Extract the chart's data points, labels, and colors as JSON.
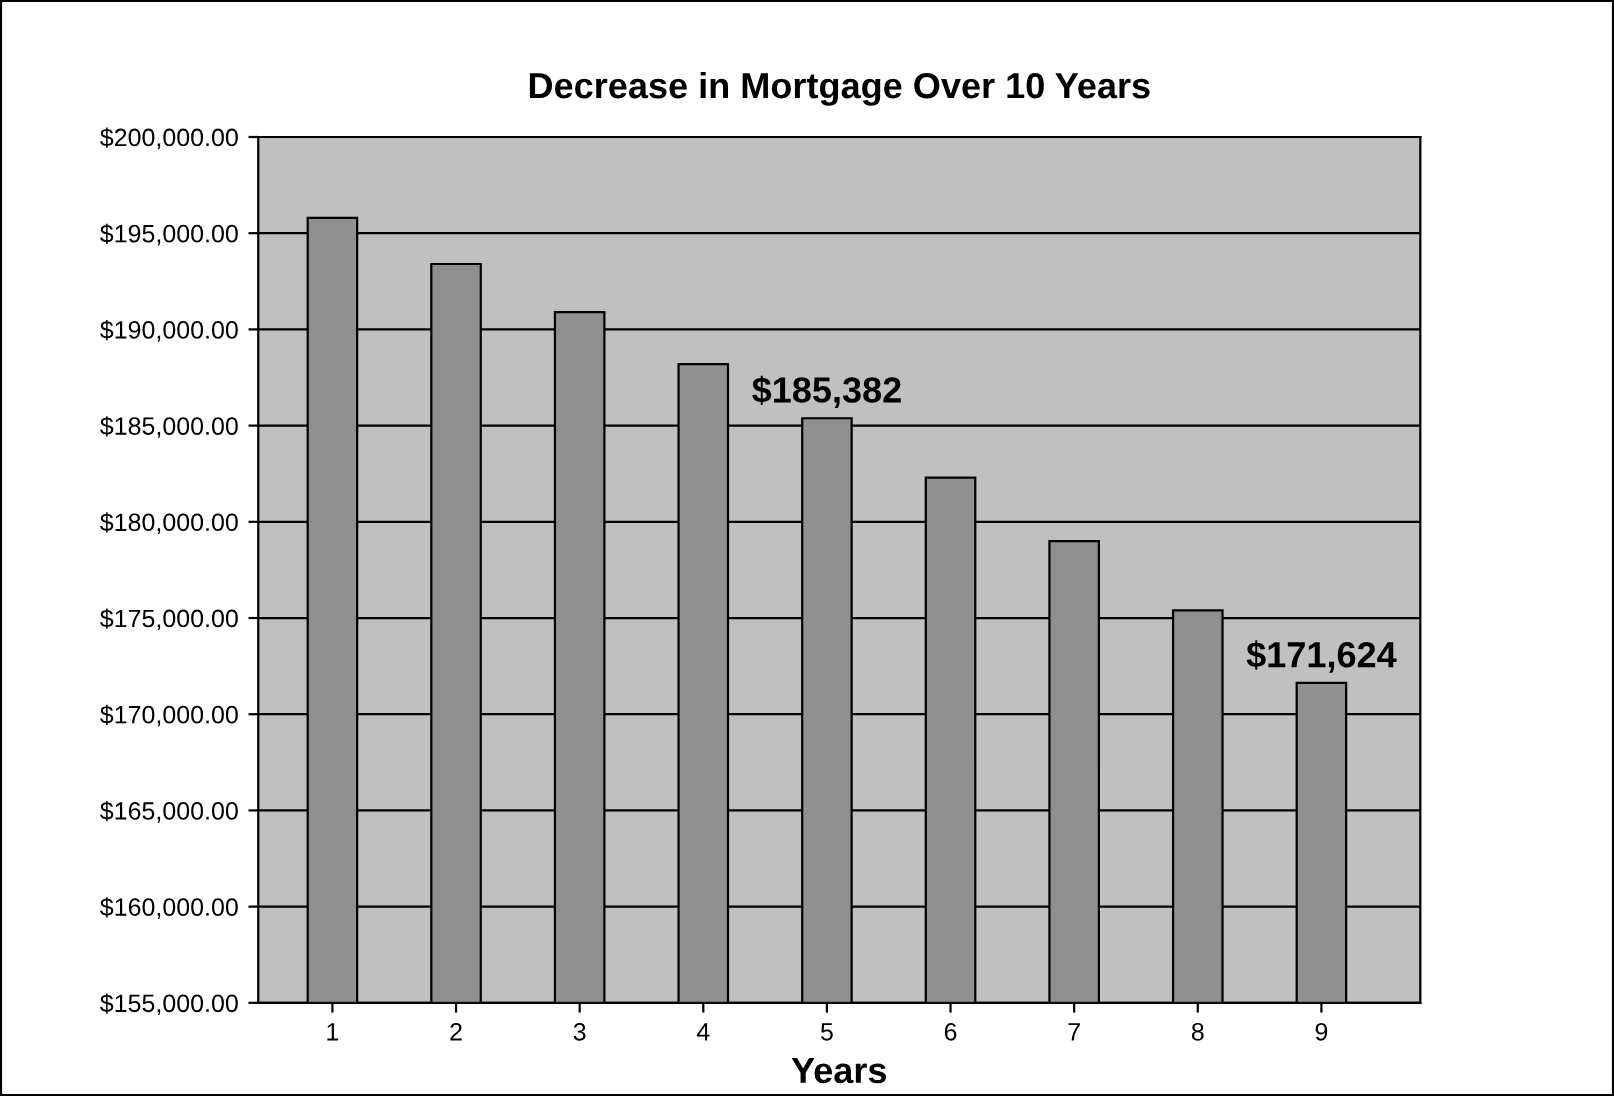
{
  "chart_data": {
    "type": "bar",
    "title": "Decrease in Mortgage Over 10 Years",
    "xlabel": "Years",
    "categories": [
      "1",
      "2",
      "3",
      "4",
      "5",
      "6",
      "7",
      "8",
      "9"
    ],
    "values": [
      195800,
      193400,
      190900,
      188200,
      185382,
      182300,
      179000,
      175400,
      171624
    ],
    "value_labels": [
      null,
      null,
      null,
      null,
      "$185,382",
      null,
      null,
      null,
      "$171,624"
    ],
    "color": "#909090",
    "ylim": [
      155000,
      200000
    ],
    "yticks": [
      {
        "value": 155000,
        "label": "$155,000.00"
      },
      {
        "value": 160000,
        "label": "$160,000.00"
      },
      {
        "value": 165000,
        "label": "$165,000.00"
      },
      {
        "value": 170000,
        "label": "$170,000.00"
      },
      {
        "value": 175000,
        "label": "$175,000.00"
      },
      {
        "value": 180000,
        "label": "$180,000.00"
      },
      {
        "value": 185000,
        "label": "$185,000.00"
      },
      {
        "value": 190000,
        "label": "$190,000.00"
      },
      {
        "value": 195000,
        "label": "$195,000.00"
      },
      {
        "value": 200000,
        "label": "$200,000.00"
      }
    ],
    "grid": "y",
    "legend": false
  }
}
